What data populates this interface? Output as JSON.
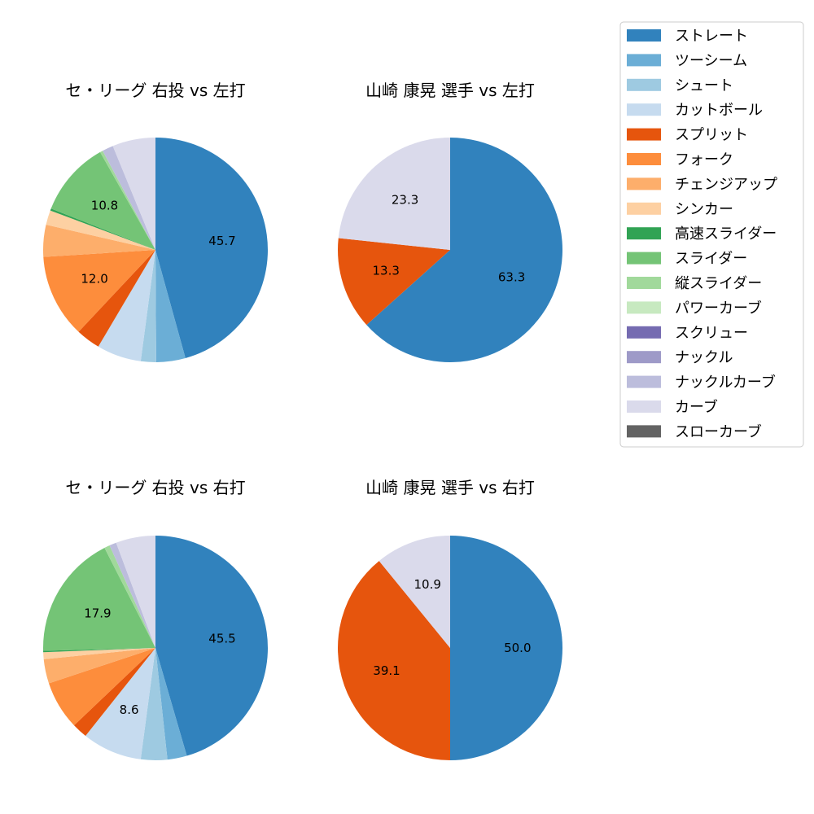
{
  "legend": {
    "entries": [
      {
        "label": "ストレート",
        "color": "#3182bd"
      },
      {
        "label": "ツーシーム",
        "color": "#6baed6"
      },
      {
        "label": "シュート",
        "color": "#9ecae1"
      },
      {
        "label": "カットボール",
        "color": "#c6dbef"
      },
      {
        "label": "スプリット",
        "color": "#e6550d"
      },
      {
        "label": "フォーク",
        "color": "#fd8d3c"
      },
      {
        "label": "チェンジアップ",
        "color": "#fdae6b"
      },
      {
        "label": "シンカー",
        "color": "#fdd0a2"
      },
      {
        "label": "高速スライダー",
        "color": "#31a354"
      },
      {
        "label": "スライダー",
        "color": "#74c476"
      },
      {
        "label": "縦スライダー",
        "color": "#a1d99b"
      },
      {
        "label": "パワーカーブ",
        "color": "#c7e9c0"
      },
      {
        "label": "スクリュー",
        "color": "#756bb1"
      },
      {
        "label": "ナックル",
        "color": "#9e9ac8"
      },
      {
        "label": "ナックルカーブ",
        "color": "#bcbddc"
      },
      {
        "label": "カーブ",
        "color": "#dadaeb"
      },
      {
        "label": "スローカーブ",
        "color": "#636363"
      }
    ]
  },
  "chart_data": [
    {
      "type": "pie",
      "title": "セ・リーグ 右投 vs 左打",
      "slices": [
        {
          "label": "ストレート",
          "value": 45.7,
          "shown_label": "45.7"
        },
        {
          "label": "ツーシーム",
          "value": 4.2
        },
        {
          "label": "シュート",
          "value": 2.2
        },
        {
          "label": "カットボール",
          "value": 6.4
        },
        {
          "label": "スプリット",
          "value": 3.5
        },
        {
          "label": "フォーク",
          "value": 12.0,
          "shown_label": "12.0"
        },
        {
          "label": "チェンジアップ",
          "value": 4.6
        },
        {
          "label": "シンカー",
          "value": 2.1
        },
        {
          "label": "高速スライダー",
          "value": 0.3
        },
        {
          "label": "スライダー",
          "value": 10.8,
          "shown_label": "10.8"
        },
        {
          "label": "縦スライダー",
          "value": 0.4
        },
        {
          "label": "ナックルカーブ",
          "value": 1.6
        },
        {
          "label": "カーブ",
          "value": 6.2
        }
      ]
    },
    {
      "type": "pie",
      "title": "山崎 康晃 選手 vs 左打",
      "slices": [
        {
          "label": "ストレート",
          "value": 63.3,
          "shown_label": "63.3"
        },
        {
          "label": "スプリット",
          "value": 13.3,
          "shown_label": "13.3"
        },
        {
          "label": "カーブ",
          "value": 23.3,
          "shown_label": "23.3"
        }
      ]
    },
    {
      "type": "pie",
      "title": "セ・リーグ 右投 vs 右打",
      "slices": [
        {
          "label": "ストレート",
          "value": 45.5,
          "shown_label": "45.5"
        },
        {
          "label": "ツーシーム",
          "value": 2.8
        },
        {
          "label": "シュート",
          "value": 3.8
        },
        {
          "label": "カットボール",
          "value": 8.6,
          "shown_label": "8.6"
        },
        {
          "label": "スプリット",
          "value": 2.2
        },
        {
          "label": "フォーク",
          "value": 7.0
        },
        {
          "label": "チェンジアップ",
          "value": 3.5
        },
        {
          "label": "シンカー",
          "value": 1.0
        },
        {
          "label": "高速スライダー",
          "value": 0.2
        },
        {
          "label": "スライダー",
          "value": 17.9,
          "shown_label": "17.9"
        },
        {
          "label": "縦スライダー",
          "value": 0.8
        },
        {
          "label": "ナックルカーブ",
          "value": 1.0
        },
        {
          "label": "カーブ",
          "value": 5.7
        }
      ]
    },
    {
      "type": "pie",
      "title": "山崎 康晃 選手 vs 右打",
      "slices": [
        {
          "label": "ストレート",
          "value": 50.0,
          "shown_label": "50.0"
        },
        {
          "label": "スプリット",
          "value": 39.1,
          "shown_label": "39.1"
        },
        {
          "label": "カーブ",
          "value": 10.9,
          "shown_label": "10.9"
        }
      ]
    }
  ]
}
